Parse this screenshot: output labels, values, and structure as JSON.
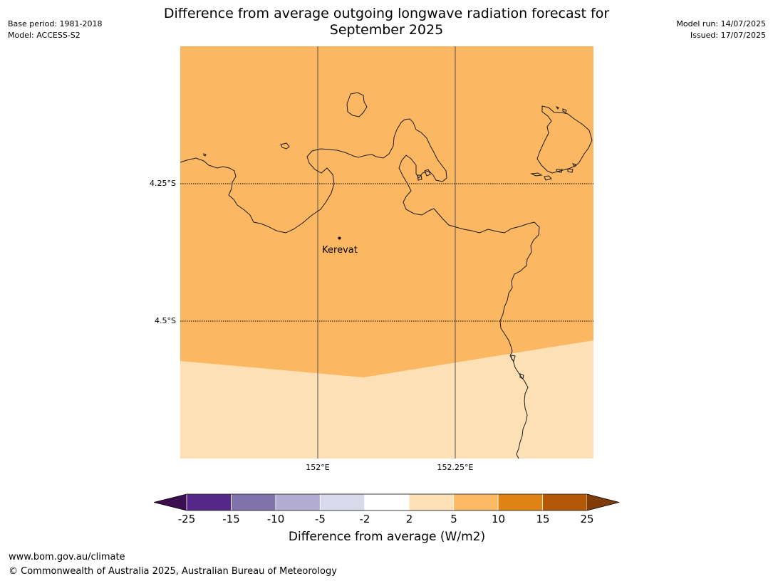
{
  "header": {
    "title_line1": "Difference from average outgoing longwave radiation forecast for",
    "title_line2": "September 2025",
    "base_period": "Base period: 1981-2018",
    "model": "Model: ACCESS-S2",
    "model_run": "Model run: 14/07/2025",
    "issued": "Issued: 17/07/2025"
  },
  "map": {
    "lat_labels": [
      "4.25°S",
      "4.5°S"
    ],
    "lon_labels": [
      "152°E",
      "152.25°E"
    ],
    "place_label": "Kerevat",
    "fill_colors": {
      "upper": "#fbb762",
      "lower": "#fde0b6",
      "coast": "#1a1a1a"
    }
  },
  "colorbar": {
    "tick_labels": [
      "-25",
      "-15",
      "-10",
      "-5",
      "-2",
      "2",
      "5",
      "10",
      "15",
      "25"
    ],
    "colors": [
      "#3b0f4f",
      "#542788",
      "#8073ac",
      "#b2abd2",
      "#d8daeb",
      "#ffffff",
      "#fee0b6",
      "#fdb863",
      "#e08214",
      "#b35806",
      "#7f3b08"
    ],
    "label": "Difference from average (W/m2)"
  },
  "footer": {
    "url": "www.bom.gov.au/climate",
    "copyright": "© Commonwealth of Australia 2025, Australian Bureau of Meteorology"
  }
}
